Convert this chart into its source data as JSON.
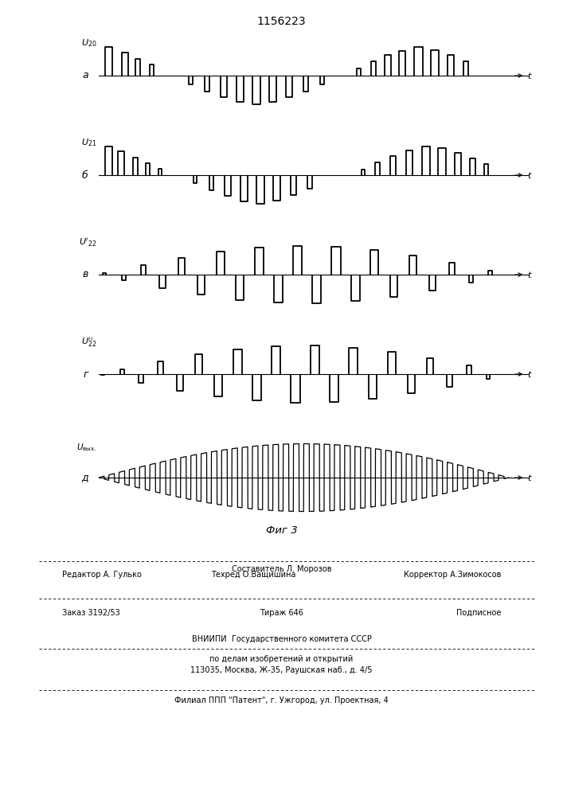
{
  "title": "1156223",
  "fig_label": "Фиг 3",
  "background_color": "#ffffff",
  "line_color": "#000000",
  "panel_labels": [
    "а",
    "б",
    "в",
    "г",
    "д"
  ],
  "footer": {
    "sestavitel": "Составитель Л. Морозов",
    "redaktor": "Редактор А. Гулько",
    "tehred": "Техред О.Ващишина",
    "korrektor": "Корректор А.Зимокосов",
    "zakaz": "Заказ 3192/53",
    "tirazh": "Тираж 646",
    "podpisnoe": "Подписное",
    "vniipи": "ВНИИПИ  Государственного комитета СССР",
    "po_delam": "по делам изобретений и открытий",
    "address": "113035, Москва, Ж-35, Раушская наб., д. 4/5",
    "filial": "Филиал ППП \"Патент\", г. Ужгород, ул. Проектная, 4"
  }
}
